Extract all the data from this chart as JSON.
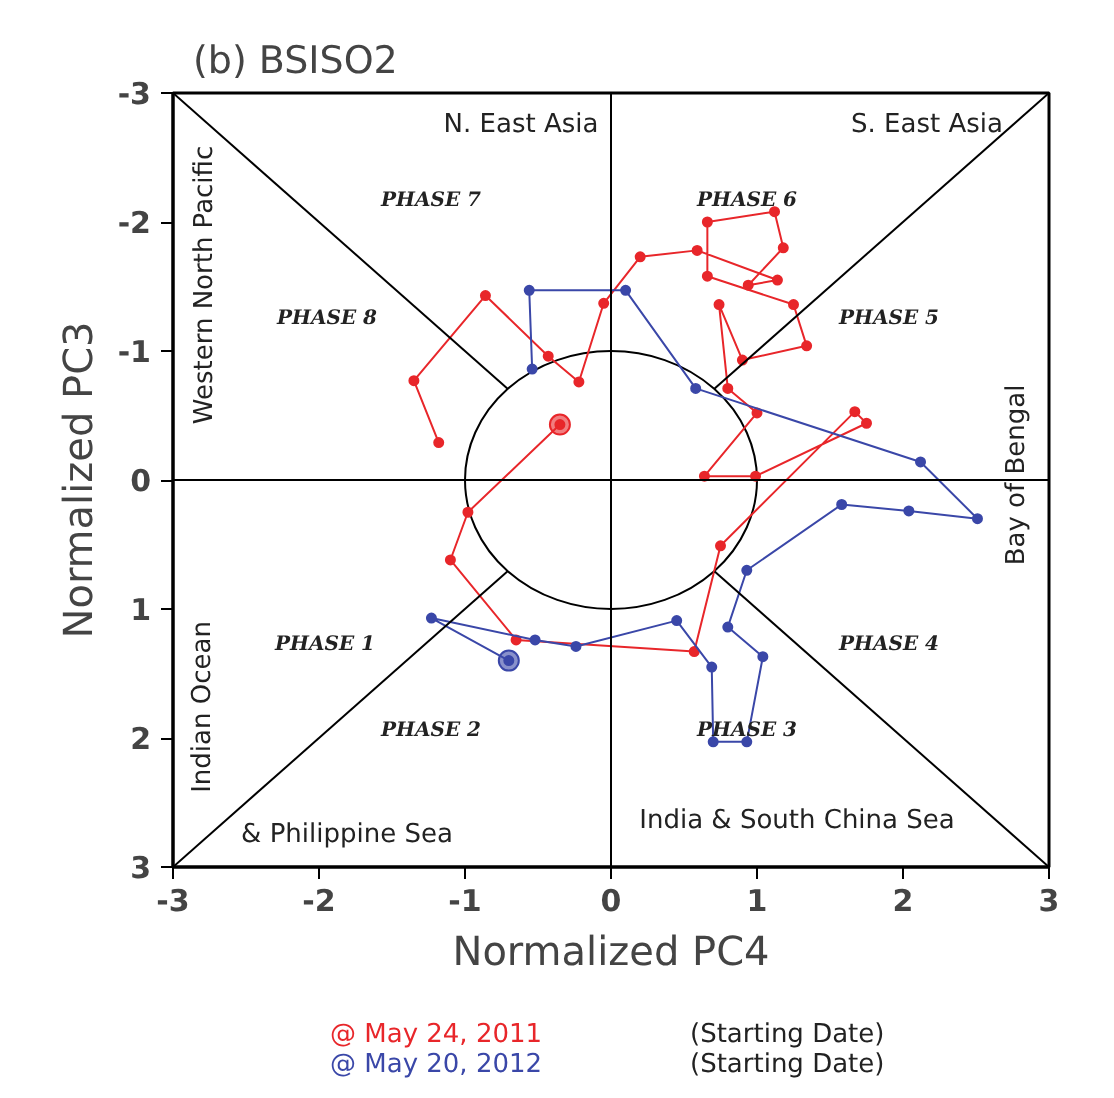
{
  "chart_data": {
    "type": "line",
    "title": "(b)  BSISO2",
    "xlabel": "Normalized PC4",
    "ylabel": "Normalized PC3",
    "xlim": [
      -3,
      3
    ],
    "ylim": [
      3,
      -3
    ],
    "xticks": [
      -3,
      -2,
      -1,
      0,
      1,
      2,
      3
    ],
    "yticks": [
      -3,
      -2,
      -1,
      0,
      1,
      2,
      3
    ],
    "grid": false,
    "marker": "circle",
    "series": [
      {
        "name": "@ May 24, 2011",
        "color": "#e8262a",
        "x": [
          -0.35,
          -0.98,
          -1.1,
          -0.65,
          0.57,
          0.75,
          1.67,
          1.75,
          0.99,
          0.64,
          1.0,
          0.8,
          0.74,
          0.9,
          1.34,
          1.25,
          0.66,
          0.66,
          1.12,
          1.18,
          0.94,
          1.14,
          0.59,
          0.2,
          -0.05,
          -0.22,
          -0.43,
          -0.86,
          -1.35,
          -1.18
        ],
        "values": [
          -0.43,
          0.25,
          0.62,
          1.24,
          1.33,
          0.51,
          -0.53,
          -0.44,
          -0.03,
          -0.03,
          -0.52,
          -0.71,
          -1.36,
          -0.93,
          -1.04,
          -1.36,
          -1.58,
          -2.0,
          -2.08,
          -1.8,
          -1.51,
          -1.55,
          -1.78,
          -1.73,
          -1.37,
          -0.76,
          -0.96,
          -1.43,
          -0.77,
          -0.29
        ]
      },
      {
        "name": "@ May 20, 2012",
        "color": "#3a47a8",
        "x": [
          -0.7,
          -1.23,
          -0.52,
          -0.24,
          0.45,
          0.69,
          0.7,
          0.93,
          1.04,
          0.8,
          0.93,
          1.58,
          2.04,
          2.51,
          2.12,
          0.58,
          0.1,
          -0.56,
          -0.54
        ],
        "values": [
          1.4,
          1.07,
          1.24,
          1.29,
          1.09,
          1.45,
          2.03,
          2.03,
          1.37,
          1.14,
          0.7,
          0.19,
          0.24,
          0.3,
          -0.14,
          -0.71,
          -1.47,
          -1.47,
          -0.86
        ]
      },
      {
        "color": "#000000",
        "marker": "none",
        "x": [
          -3,
          -0.71
        ],
        "values": [
          -3,
          -0.71
        ]
      },
      {
        "color": "#000000",
        "marker": "none",
        "x": [
          3,
          0.71
        ],
        "values": [
          -3,
          -0.71
        ]
      },
      {
        "color": "#000000",
        "marker": "none",
        "x": [
          -3,
          -0.71
        ],
        "values": [
          3,
          0.71
        ]
      },
      {
        "color": "#000000",
        "marker": "none",
        "x": [
          3,
          0.71
        ],
        "values": [
          3,
          0.71
        ]
      },
      {
        "color": "#000000",
        "marker": "none",
        "x": [
          -3,
          3
        ],
        "values": [
          0,
          0
        ]
      },
      {
        "color": "#000000",
        "marker": "none",
        "x": [
          0,
          0
        ],
        "values": [
          -3,
          3
        ]
      }
    ],
    "annotations": [
      "N. East Asia",
      "S. East Asia",
      "PHASE 7",
      "PHASE 6",
      "PHASE 8",
      "PHASE 5",
      "Western North Pacific",
      "Bay of Bengal",
      "Indian Ocean",
      "& Philippine Sea",
      "India & South China Sea",
      "PHASE 1",
      "PHASE 4",
      "PHASE 2",
      "PHASE 3",
      "(Starting Date)",
      "(Starting Date)"
    ]
  }
}
